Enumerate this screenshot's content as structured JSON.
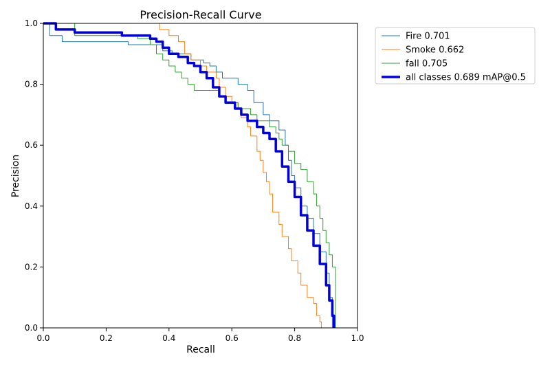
{
  "chart_data": {
    "type": "line",
    "title": "Precision-Recall Curve",
    "xlabel": "Recall",
    "ylabel": "Precision",
    "xlim": [
      0.0,
      1.0
    ],
    "ylim": [
      0.0,
      1.0
    ],
    "xticks": [
      "0.0",
      "0.2",
      "0.4",
      "0.6",
      "0.8",
      "1.0"
    ],
    "yticks": [
      "0.0",
      "0.2",
      "0.4",
      "0.6",
      "0.8",
      "1.0"
    ],
    "grid": false,
    "legend_position": "outside-top-right",
    "series": [
      {
        "name": "Fire 0.701",
        "color": "#1f77b4",
        "width": 1,
        "points": [
          [
            0,
            1.0
          ],
          [
            0.015,
            1.0
          ],
          [
            0.02,
            0.96
          ],
          [
            0.06,
            0.94
          ],
          [
            0.1,
            0.94
          ],
          [
            0.2,
            0.94
          ],
          [
            0.26,
            0.94
          ],
          [
            0.27,
            0.93
          ],
          [
            0.35,
            0.93
          ],
          [
            0.38,
            0.91
          ],
          [
            0.41,
            0.9
          ],
          [
            0.44,
            0.9
          ],
          [
            0.47,
            0.88
          ],
          [
            0.49,
            0.88
          ],
          [
            0.51,
            0.87
          ],
          [
            0.53,
            0.86
          ],
          [
            0.55,
            0.84
          ],
          [
            0.57,
            0.82
          ],
          [
            0.59,
            0.82
          ],
          [
            0.62,
            0.8
          ],
          [
            0.65,
            0.78
          ],
          [
            0.67,
            0.74
          ],
          [
            0.7,
            0.7
          ],
          [
            0.72,
            0.68
          ],
          [
            0.75,
            0.65
          ],
          [
            0.77,
            0.6
          ],
          [
            0.78,
            0.55
          ],
          [
            0.79,
            0.5
          ],
          [
            0.8,
            0.46
          ],
          [
            0.82,
            0.4
          ],
          [
            0.84,
            0.36
          ],
          [
            0.86,
            0.31
          ],
          [
            0.88,
            0.25
          ],
          [
            0.9,
            0.18
          ],
          [
            0.91,
            0.1
          ],
          [
            0.92,
            0.03
          ],
          [
            0.92,
            0.0
          ],
          [
            1.0,
            0.0
          ]
        ]
      },
      {
        "name": "Smoke 0.662",
        "color": "#ff7f0e",
        "width": 1,
        "points": [
          [
            0.35,
            1.0
          ],
          [
            0.37,
            0.98
          ],
          [
            0.4,
            0.96
          ],
          [
            0.43,
            0.94
          ],
          [
            0.45,
            0.9
          ],
          [
            0.47,
            0.88
          ],
          [
            0.5,
            0.86
          ],
          [
            0.52,
            0.84
          ],
          [
            0.55,
            0.82
          ],
          [
            0.56,
            0.79
          ],
          [
            0.58,
            0.76
          ],
          [
            0.6,
            0.74
          ],
          [
            0.62,
            0.72
          ],
          [
            0.63,
            0.69
          ],
          [
            0.65,
            0.66
          ],
          [
            0.66,
            0.63
          ],
          [
            0.68,
            0.58
          ],
          [
            0.69,
            0.55
          ],
          [
            0.7,
            0.51
          ],
          [
            0.71,
            0.48
          ],
          [
            0.72,
            0.44
          ],
          [
            0.73,
            0.38
          ],
          [
            0.75,
            0.34
          ],
          [
            0.76,
            0.3
          ],
          [
            0.78,
            0.26
          ],
          [
            0.79,
            0.22
          ],
          [
            0.81,
            0.18
          ],
          [
            0.82,
            0.14
          ],
          [
            0.84,
            0.1
          ],
          [
            0.86,
            0.08
          ],
          [
            0.87,
            0.04
          ],
          [
            0.88,
            0.02
          ],
          [
            0.885,
            0.0
          ]
        ]
      },
      {
        "name": "fall 0.705",
        "color": "#2ca02c",
        "width": 1,
        "points": [
          [
            0.0,
            1.0
          ],
          [
            0.04,
            1.0
          ],
          [
            0.1,
            1.0
          ],
          [
            0.1,
            0.96
          ],
          [
            0.2,
            0.96
          ],
          [
            0.3,
            0.95
          ],
          [
            0.34,
            0.93
          ],
          [
            0.36,
            0.9
          ],
          [
            0.38,
            0.88
          ],
          [
            0.4,
            0.86
          ],
          [
            0.42,
            0.84
          ],
          [
            0.44,
            0.82
          ],
          [
            0.46,
            0.8
          ],
          [
            0.48,
            0.78
          ],
          [
            0.52,
            0.78
          ],
          [
            0.56,
            0.76
          ],
          [
            0.58,
            0.74
          ],
          [
            0.62,
            0.72
          ],
          [
            0.66,
            0.7
          ],
          [
            0.68,
            0.68
          ],
          [
            0.72,
            0.66
          ],
          [
            0.74,
            0.64
          ],
          [
            0.75,
            0.62
          ],
          [
            0.76,
            0.6
          ],
          [
            0.78,
            0.58
          ],
          [
            0.8,
            0.54
          ],
          [
            0.82,
            0.52
          ],
          [
            0.84,
            0.48
          ],
          [
            0.86,
            0.44
          ],
          [
            0.87,
            0.4
          ],
          [
            0.88,
            0.36
          ],
          [
            0.89,
            0.32
          ],
          [
            0.9,
            0.28
          ],
          [
            0.91,
            0.24
          ],
          [
            0.92,
            0.2
          ],
          [
            0.93,
            0.18
          ],
          [
            0.93,
            0.0
          ]
        ]
      },
      {
        "name": "all classes 0.689 mAP@0.5",
        "color": "#0000dd",
        "width": 3.5,
        "points": [
          [
            0.0,
            1.0
          ],
          [
            0.04,
            0.98
          ],
          [
            0.1,
            0.97
          ],
          [
            0.2,
            0.97
          ],
          [
            0.25,
            0.96
          ],
          [
            0.3,
            0.96
          ],
          [
            0.34,
            0.95
          ],
          [
            0.36,
            0.94
          ],
          [
            0.38,
            0.92
          ],
          [
            0.4,
            0.9
          ],
          [
            0.43,
            0.89
          ],
          [
            0.46,
            0.87
          ],
          [
            0.48,
            0.86
          ],
          [
            0.5,
            0.84
          ],
          [
            0.52,
            0.82
          ],
          [
            0.54,
            0.79
          ],
          [
            0.56,
            0.76
          ],
          [
            0.58,
            0.74
          ],
          [
            0.61,
            0.72
          ],
          [
            0.63,
            0.7
          ],
          [
            0.65,
            0.68
          ],
          [
            0.68,
            0.66
          ],
          [
            0.7,
            0.64
          ],
          [
            0.72,
            0.62
          ],
          [
            0.74,
            0.58
          ],
          [
            0.76,
            0.53
          ],
          [
            0.78,
            0.48
          ],
          [
            0.8,
            0.43
          ],
          [
            0.82,
            0.37
          ],
          [
            0.84,
            0.32
          ],
          [
            0.86,
            0.27
          ],
          [
            0.88,
            0.21
          ],
          [
            0.9,
            0.14
          ],
          [
            0.91,
            0.09
          ],
          [
            0.92,
            0.04
          ],
          [
            0.925,
            0.0
          ]
        ]
      }
    ]
  }
}
